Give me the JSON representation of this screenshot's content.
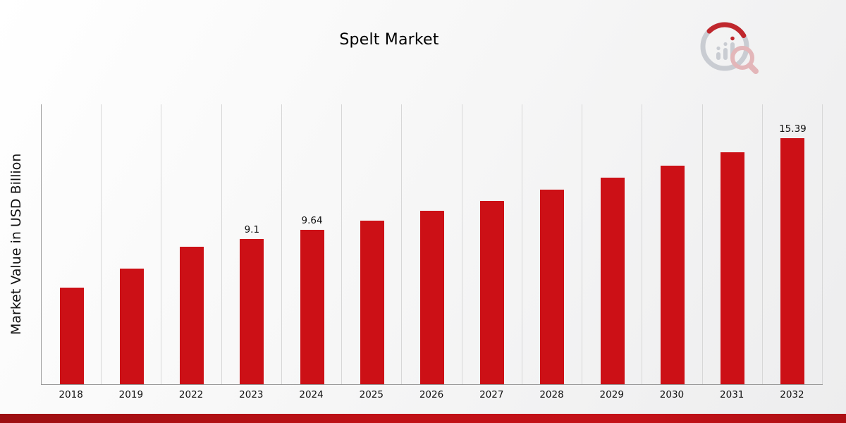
{
  "page": {
    "accent_red": "#cc1016",
    "bottom_strip_color": "#b01014",
    "axis_color": "#999999",
    "grid_color": "#d7d7d7"
  },
  "logo": {
    "icon": "bar-chart-magnifier-logo",
    "gray": "#c9ccd2",
    "red": "#c0272d",
    "pink": "#e3b6b9"
  },
  "chart_data": {
    "type": "bar",
    "title": "Spelt Market",
    "xlabel": "",
    "ylabel": "Market Value in USD Billion",
    "categories": [
      "2018",
      "2019",
      "2022",
      "2023",
      "2024",
      "2025",
      "2026",
      "2027",
      "2028",
      "2029",
      "2030",
      "2031",
      "2032"
    ],
    "values": [
      6.05,
      7.25,
      8.6,
      9.1,
      9.64,
      10.22,
      10.83,
      11.48,
      12.17,
      12.9,
      13.68,
      14.5,
      15.39
    ],
    "data_labels": [
      "",
      "",
      "",
      "9.1",
      "9.64",
      "",
      "",
      "",
      "",
      "",
      "",
      "",
      "15.39"
    ],
    "ylim": [
      0,
      17.5
    ],
    "bar_color": "#cc1016",
    "grid": "vertical",
    "legend": "none",
    "y_axis_ticks_visible": false
  }
}
